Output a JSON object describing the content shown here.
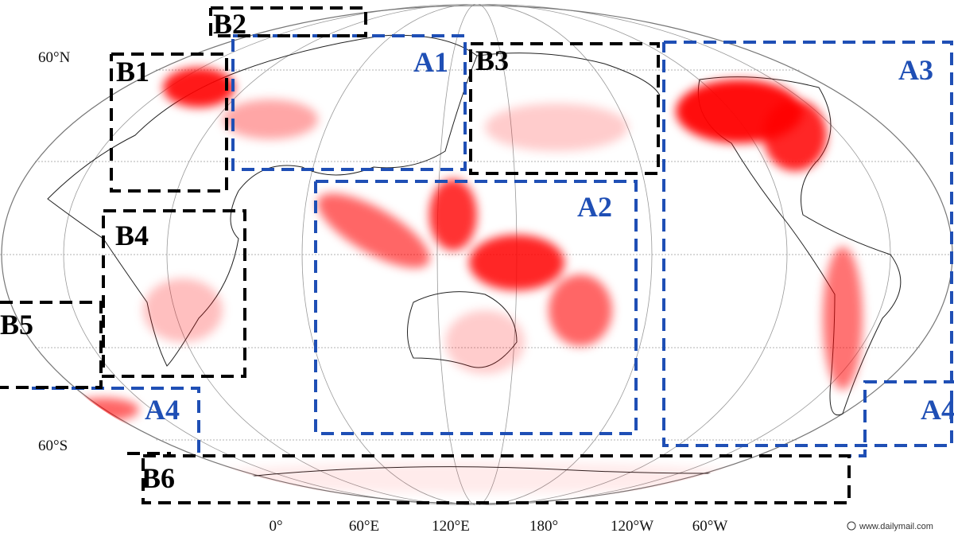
{
  "regions": [
    {
      "label": "A1"
    },
    {
      "label": "A2"
    },
    {
      "label": "A3"
    },
    {
      "label": "A4"
    },
    {
      "label": "B1"
    },
    {
      "label": "B2"
    },
    {
      "label": "B3"
    },
    {
      "label": "B4"
    },
    {
      "label": "B5"
    },
    {
      "label": "B6"
    }
  ],
  "lat_labels": [
    "60°N",
    "60°S"
  ],
  "lon_labels": [
    "0°",
    "60°E",
    "120°E",
    "180°",
    "120°W",
    "60°W"
  ],
  "credit": "www.dailymail.com"
}
